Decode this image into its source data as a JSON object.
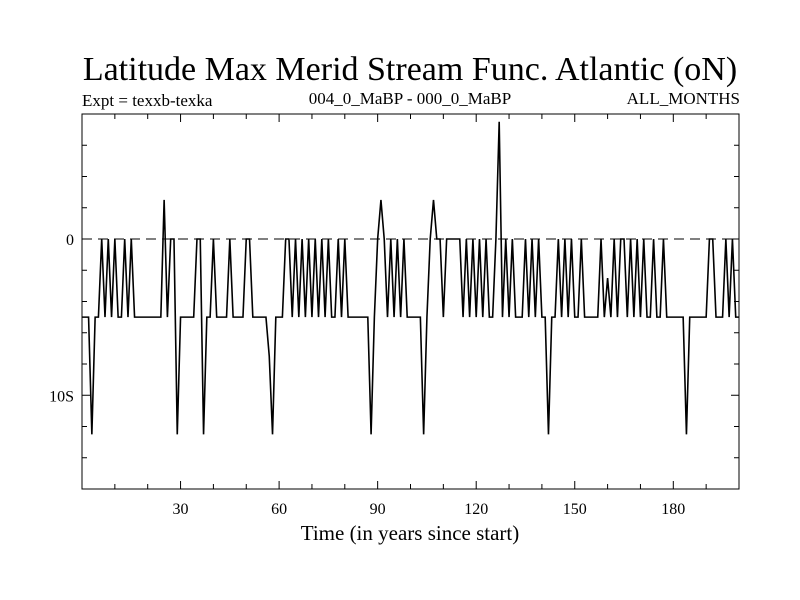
{
  "chart_data": {
    "type": "line",
    "title": "Latitude Max Merid Stream Func. Atlantic (oN)",
    "subtitle_left": "Expt = texxb-texka",
    "subtitle_center": "004_0_MaBP - 000_0_MaBP",
    "subtitle_right": "ALL_MONTHS",
    "xlabel": "Time (in years since start)",
    "ylabel": "",
    "xlim": [
      0,
      200
    ],
    "ylim": [
      -16,
      8
    ],
    "x_ticks": [
      30,
      60,
      90,
      120,
      150,
      180
    ],
    "y_ticks": [
      0,
      -10
    ],
    "y_tick_labels": [
      "0",
      "10S"
    ],
    "zero_line": 0,
    "series": [
      {
        "x": [
          0,
          2,
          3,
          4,
          5,
          6,
          7,
          8,
          9,
          10,
          11,
          12,
          13,
          14,
          15,
          16,
          17,
          18,
          19,
          20,
          21,
          22,
          23,
          24,
          25,
          26,
          27,
          28,
          29,
          30,
          31,
          32,
          33,
          34,
          35,
          36,
          37,
          38,
          39,
          40,
          41,
          42,
          43,
          44,
          45,
          46,
          47,
          48,
          49,
          50,
          51,
          52,
          53,
          54,
          55,
          56,
          57,
          58,
          59,
          60,
          61,
          62,
          63,
          64,
          65,
          66,
          67,
          68,
          69,
          70,
          71,
          72,
          73,
          74,
          75,
          76,
          77,
          78,
          79,
          80,
          81,
          82,
          83,
          84,
          85,
          86,
          87,
          88,
          89,
          90,
          91,
          92,
          93,
          94,
          95,
          96,
          97,
          98,
          99,
          100,
          101,
          102,
          103,
          104,
          105,
          106,
          107,
          108,
          109,
          110,
          111,
          112,
          113,
          114,
          115,
          116,
          117,
          118,
          119,
          120,
          121,
          122,
          123,
          124,
          125,
          126,
          127,
          128,
          129,
          130,
          131,
          132,
          133,
          134,
          135,
          136,
          137,
          138,
          139,
          140,
          141,
          142,
          143,
          144,
          145,
          146,
          147,
          148,
          149,
          150,
          151,
          152,
          153,
          154,
          155,
          156,
          157,
          158,
          159,
          160,
          161,
          162,
          163,
          164,
          165,
          166,
          167,
          168,
          169,
          170,
          171,
          172,
          173,
          174,
          175,
          176,
          177,
          178,
          179,
          180,
          181,
          182,
          183,
          184,
          185,
          186,
          187,
          188,
          189,
          190,
          191,
          192,
          193,
          194,
          195,
          196,
          197,
          198,
          199,
          200
        ],
        "y": [
          -5,
          -5,
          -12.5,
          -5,
          -5,
          0,
          -5,
          0,
          -5,
          0,
          -5,
          -5,
          0,
          -5,
          0,
          -5,
          -5,
          -5,
          -5,
          -5,
          -5,
          -5,
          -5,
          -5,
          2.5,
          -5,
          0,
          0,
          -12.5,
          -5,
          -5,
          -5,
          -5,
          -5,
          0,
          0,
          -12.5,
          -5,
          -5,
          0,
          -5,
          -5,
          -5,
          -5,
          0,
          -5,
          -5,
          -5,
          -5,
          0,
          0,
          -5,
          -5,
          -5,
          -5,
          -5,
          -7.5,
          -12.5,
          -5,
          -5,
          -5,
          0,
          0,
          -5,
          0,
          -5,
          0,
          -5,
          0,
          -5,
          0,
          -5,
          0,
          -5,
          0,
          -5,
          -5,
          0,
          -5,
          0,
          -5,
          -5,
          -5,
          -5,
          -5,
          -5,
          -5,
          -12.5,
          -5,
          0,
          2.5,
          0,
          -5,
          0,
          -5,
          0,
          -5,
          0,
          -5,
          -5,
          -5,
          -5,
          -5,
          -12.5,
          -5,
          0,
          2.5,
          0,
          0,
          -5,
          0,
          0,
          0,
          0,
          0,
          -5,
          0,
          -5,
          0,
          -5,
          0,
          -5,
          0,
          -5,
          -5,
          0,
          7.5,
          -5,
          0,
          -5,
          0,
          -5,
          -5,
          -5,
          0,
          -5,
          0,
          -5,
          0,
          -5,
          -5,
          -12.5,
          -5,
          -5,
          0,
          -5,
          0,
          -5,
          0,
          -5,
          -5,
          0,
          -5,
          -5,
          -5,
          -5,
          -5,
          0,
          -5,
          -2.5,
          -5,
          0,
          -5,
          0,
          0,
          -5,
          0,
          -5,
          0,
          -5,
          0,
          -5,
          -5,
          0,
          -5,
          -5,
          0,
          -5,
          -5,
          -5,
          -5,
          -5,
          -5,
          -12.5,
          -5,
          -5,
          -5,
          -5,
          -5,
          -5,
          0,
          0,
          -5,
          -5,
          -5,
          0,
          -5,
          0,
          -5,
          -5
        ]
      }
    ]
  }
}
